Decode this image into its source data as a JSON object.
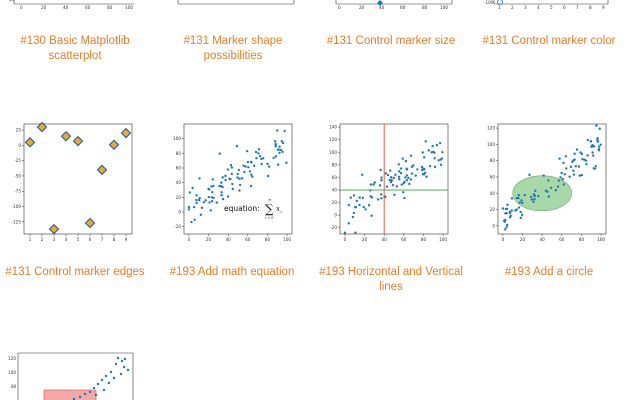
{
  "gallery": {
    "row1": [
      {
        "caption": "#130 Basic Matplotlib scatterplot"
      },
      {
        "caption": "#131 Marker shape possibilities"
      },
      {
        "caption": "#131 Control marker size"
      },
      {
        "caption": "#131 Control marker color"
      }
    ],
    "row2": [
      {
        "caption": "#131 Control marker edges"
      },
      {
        "caption": "#193 Add math equation"
      },
      {
        "caption": "#193 Horizontal and Vertical lines"
      },
      {
        "caption": "#193 Add a circle"
      }
    ]
  },
  "thumb_texts": {
    "equation_prefix": "equation:",
    "sigma": "∑",
    "sum_upper": "∞",
    "sum_lower": "i = 0",
    "sum_var": "x",
    "sum_sub": "i"
  },
  "chart_data": [
    {
      "type": "scatter",
      "name_hint": "marker-edges",
      "x": [
        1,
        2,
        3,
        4,
        5,
        6,
        7,
        8,
        9
      ],
      "y": [
        5,
        30,
        -137,
        15,
        7,
        -127,
        -40,
        1,
        20
      ],
      "xticks": [
        "1",
        "2",
        "3",
        "4",
        "5",
        "6",
        "7",
        "8",
        "9"
      ],
      "yticks": [
        "25",
        "0",
        "-25",
        "-50",
        "-75",
        "-100",
        "-125"
      ],
      "xlim": [
        0.5,
        9.5
      ],
      "ylim": [
        -145,
        35
      ],
      "marker_color": "#f5a623",
      "edge_color": "#1f5fa8"
    },
    {
      "type": "scatter",
      "name_hint": "math-equation",
      "xticks": [
        "0",
        "20",
        "40",
        "60",
        "80",
        "100"
      ],
      "yticks": [
        "-20",
        "0",
        "20",
        "40",
        "60",
        "80",
        "100"
      ],
      "xlim": [
        -5,
        105
      ],
      "ylim": [
        -30,
        120
      ],
      "marker_color": "#1f77b4"
    },
    {
      "type": "scatter",
      "name_hint": "h-v-lines",
      "xticks": [
        "0",
        "20",
        "40",
        "60",
        "80",
        "100"
      ],
      "yticks": [
        "-20",
        "0",
        "20",
        "40",
        "60",
        "80",
        "100",
        "120",
        "140"
      ],
      "xlim": [
        -5,
        105
      ],
      "ylim": [
        -30,
        145
      ],
      "hline_y": 40,
      "vline_x": 40,
      "marker_color": "#1f77b4",
      "hline_color": "#4caf50",
      "vline_color": "#e74c3c"
    },
    {
      "type": "scatter",
      "name_hint": "add-circle",
      "xticks": [
        "0",
        "20",
        "40",
        "60",
        "80",
        "100"
      ],
      "yticks": [
        "0",
        "20",
        "40",
        "60",
        "80",
        "100",
        "120"
      ],
      "xlim": [
        -5,
        105
      ],
      "ylim": [
        -10,
        125
      ],
      "circle_center": [
        40,
        40
      ],
      "circle_radius": 30,
      "marker_color": "#1f77b4",
      "circle_color": "#8bc98b"
    }
  ]
}
